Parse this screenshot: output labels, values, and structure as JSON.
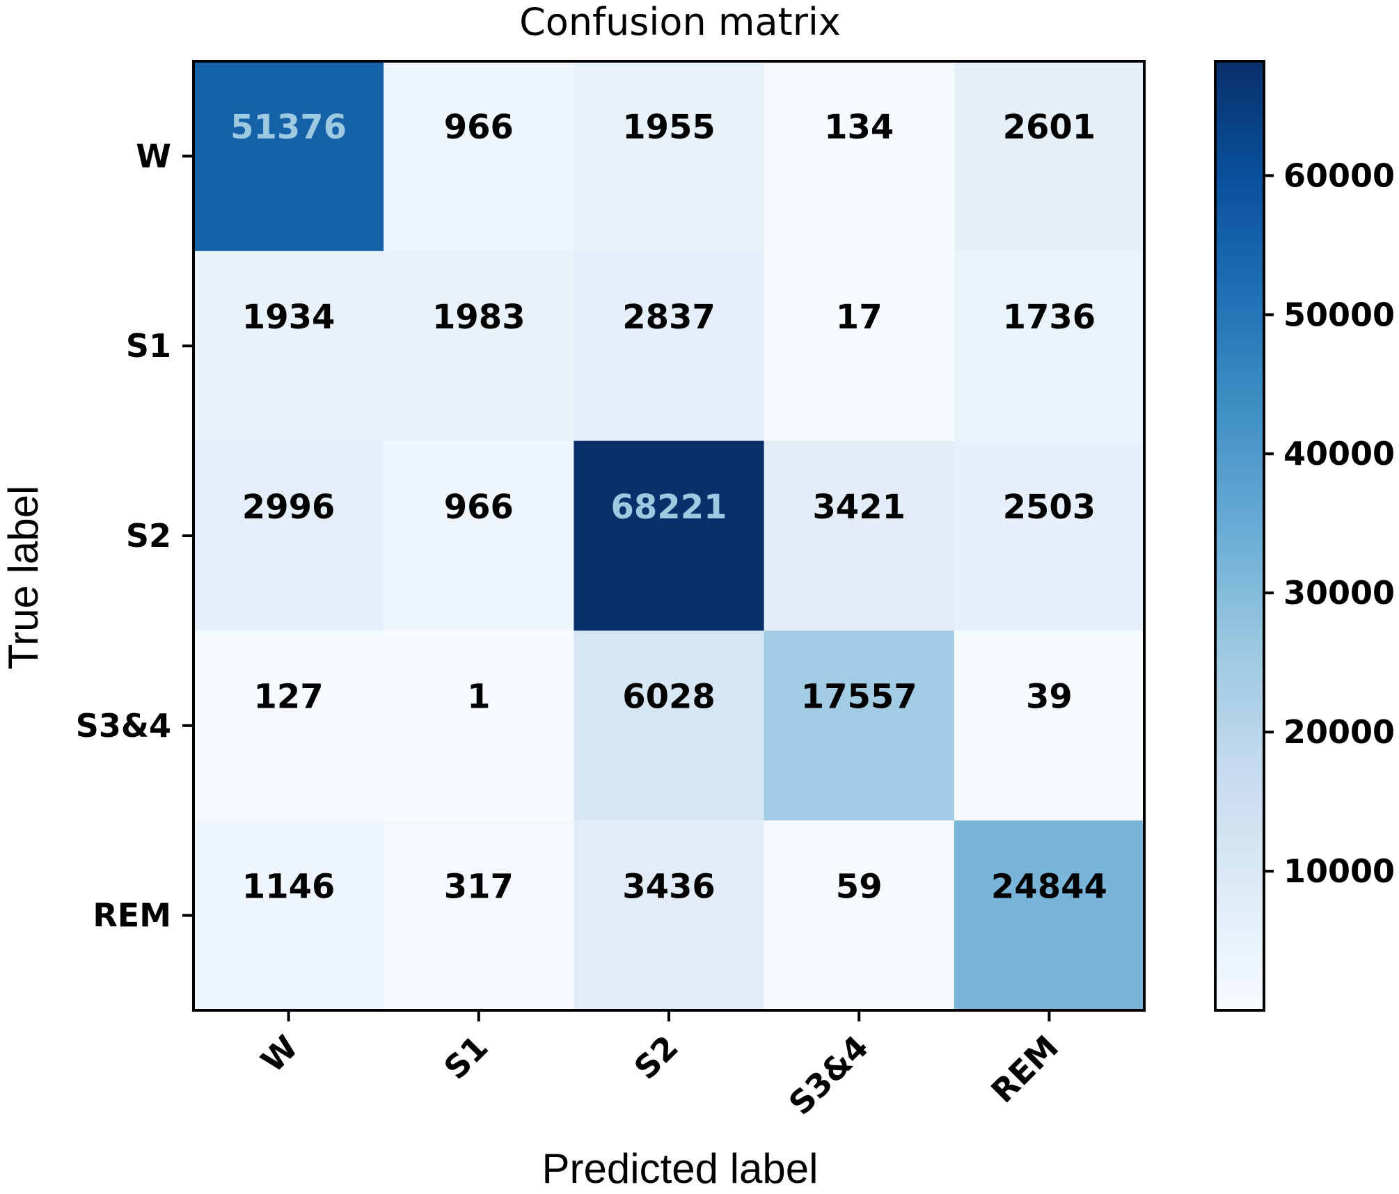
{
  "chart_data": {
    "type": "heatmap",
    "title": "Confusion matrix",
    "xlabel": "Predicted label",
    "ylabel": "True label",
    "x_categories": [
      "W",
      "S1",
      "S2",
      "S3&4",
      "REM"
    ],
    "y_categories": [
      "W",
      "S1",
      "S2",
      "S3&4",
      "REM"
    ],
    "values": [
      [
        51376,
        966,
        1955,
        134,
        2601
      ],
      [
        1934,
        1983,
        2837,
        17,
        1736
      ],
      [
        2996,
        966,
        68221,
        3421,
        2503
      ],
      [
        127,
        1,
        6028,
        17557,
        39
      ],
      [
        1146,
        317,
        3436,
        59,
        24844
      ]
    ],
    "colormap": "Blues",
    "colorbar": {
      "min": 0,
      "max": 68221,
      "ticks": [
        10000,
        20000,
        30000,
        40000,
        50000,
        60000
      ],
      "tick_labels": [
        "10000",
        "20000",
        "30000",
        "40000",
        "50000",
        "60000"
      ]
    },
    "text_threshold": 34110,
    "light_text_color": "#9ecae1",
    "dark_text_color": "#000000"
  }
}
